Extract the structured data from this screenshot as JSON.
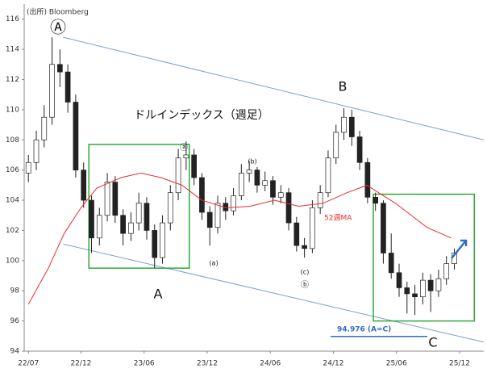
{
  "chart_data": {
    "type": "candlestick",
    "title": "ドルインデックス（週足）",
    "source": "(出所) Bloomberg",
    "xlim": [
      -0.4,
      43.3
    ],
    "xticks": [
      {
        "value": 0,
        "label": "22/07"
      },
      {
        "value": 5,
        "label": "22/12"
      },
      {
        "value": 11,
        "label": "23/06"
      },
      {
        "value": 17,
        "label": "23/12"
      },
      {
        "value": 23,
        "label": "24/06"
      },
      {
        "value": 29,
        "label": "24/12"
      },
      {
        "value": 35,
        "label": "25/06"
      },
      {
        "value": 41,
        "label": "25/12"
      }
    ],
    "ylim": [
      94,
      117
    ],
    "yticks": [
      94,
      96,
      98,
      100,
      102,
      104,
      106,
      108,
      110,
      112,
      114,
      116
    ],
    "up_color": "#ffffff",
    "down_color": "#222222",
    "x": [
      0,
      0.75,
      1.5,
      2.25,
      3,
      3.75,
      4.5,
      5.25,
      6,
      6.75,
      7.5,
      8.25,
      9,
      9.75,
      10.5,
      11.25,
      12,
      12.75,
      13.5,
      14.25,
      15,
      15.75,
      16.5,
      17.25,
      18,
      18.75,
      19.5,
      20.25,
      21,
      21.75,
      22.5,
      23.25,
      24,
      24.75,
      25.5,
      26.25,
      27,
      27.75,
      28.5,
      29.25,
      30,
      30.75,
      31.5,
      32.25,
      33,
      33.75,
      34.5,
      35.25,
      36,
      36.75,
      37.5,
      38.25,
      39,
      39.75,
      40.5
    ],
    "open": [
      105.8,
      106.5,
      108,
      109.5,
      113,
      112.5,
      110.5,
      106,
      104,
      101.5,
      103,
      105.2,
      103,
      101.8,
      102.5,
      103.8,
      102,
      100.2,
      102.5,
      104.5,
      106.8,
      107,
      105.5,
      103.2,
      102.2,
      103.8,
      103.3,
      104.3,
      105.8,
      106,
      105,
      105.3,
      104.2,
      104.5,
      102.5,
      101,
      100.8,
      103.5,
      104.5,
      106.8,
      108.5,
      109.5,
      108.2,
      106.5,
      104.2,
      103.8,
      100.5,
      99.2,
      98.2,
      97.8,
      97.6,
      98.7,
      98,
      98.8,
      99.8
    ],
    "high": [
      107,
      108.6,
      110.3,
      114.8,
      114,
      113,
      111,
      106.5,
      104.3,
      103.5,
      105.8,
      105.6,
      103.4,
      103.2,
      104.5,
      104.2,
      102.4,
      103,
      105,
      107.4,
      107.9,
      107.4,
      105.8,
      103.6,
      104.3,
      104.2,
      104.8,
      106.4,
      106.6,
      106.2,
      105.9,
      105.6,
      105,
      104.8,
      102.9,
      101.5,
      104,
      105,
      107.3,
      109,
      110.1,
      110,
      108.6,
      106.8,
      104.5,
      104,
      101.8,
      99.8,
      98.6,
      98.4,
      99.2,
      99.1,
      99.4,
      100.3,
      100.8
    ],
    "low": [
      105.2,
      106,
      107.5,
      109,
      111.5,
      109.8,
      105.5,
      103.5,
      100.5,
      101,
      102.6,
      102.5,
      101,
      101.3,
      102,
      101.4,
      99.5,
      99.8,
      102,
      104,
      106,
      105,
      102.7,
      101,
      101.8,
      102.7,
      103,
      104,
      105.2,
      104.5,
      104.6,
      103.7,
      103.8,
      102,
      100.6,
      100.2,
      100.5,
      103.1,
      104.2,
      106.4,
      108,
      107.6,
      106,
      103.8,
      103.3,
      99.8,
      98.8,
      97.6,
      96.5,
      96.4,
      97.1,
      96.6,
      97.6,
      98.4,
      99.4
    ],
    "close": [
      106.5,
      108,
      109.5,
      113,
      112.5,
      110.5,
      106,
      104,
      101.5,
      103,
      105.2,
      103,
      101.8,
      102.5,
      103.8,
      102,
      100.2,
      102.5,
      104.5,
      106.8,
      107,
      105.5,
      103.2,
      102.2,
      103.8,
      103.3,
      104.3,
      105.8,
      106,
      105,
      105.3,
      104.2,
      104.5,
      102.5,
      101,
      100.8,
      103.5,
      104.5,
      106.8,
      108.5,
      109.5,
      108.2,
      106.5,
      104.2,
      103.8,
      100.5,
      99.2,
      98.2,
      97.8,
      97.6,
      98.7,
      98,
      98.8,
      99.8,
      100.5
    ],
    "ma": {
      "name": "52週MA",
      "color": "#e8302a",
      "x": [
        0,
        1.9,
        3.4,
        5,
        6.5,
        8.8,
        10.7,
        12.6,
        14.6,
        16.5,
        18.8,
        21.1,
        23.4,
        25.7,
        28,
        30.3,
        32.2,
        33.3,
        34.9,
        36.4,
        37.9,
        40.2
      ],
      "values": [
        97.1,
        99.5,
        101.8,
        103.5,
        104.8,
        105.5,
        105.8,
        105.5,
        105,
        104,
        103.5,
        103.6,
        104,
        103.6,
        103.8,
        104.5,
        105,
        104.5,
        103.8,
        103,
        102.2,
        101.5
      ]
    },
    "trendlines": [
      {
        "color": "#7a9fd6",
        "x": [
          3.3,
          43.3
        ],
        "values": [
          114.8,
          108
        ]
      },
      {
        "color": "#7a9fd6",
        "x": [
          3.3,
          43.3
        ],
        "values": [
          101.1,
          94.6
        ]
      }
    ],
    "boxes": [
      {
        "color": "#2eaa3a",
        "x": [
          5.75,
          15.3
        ],
        "values": [
          107.7,
          99.5
        ]
      },
      {
        "color": "#2eaa3a",
        "x": [
          32.8,
          42.4
        ],
        "values": [
          104.4,
          96
        ]
      }
    ],
    "target": {
      "value": 94.976,
      "label": "94.976 (A=C)",
      "color": "#2e6fbf"
    },
    "annotations": [
      "Ⓐ",
      "A",
      "B",
      "C",
      "(a)",
      "(b)",
      "(c)",
      "ⓑ",
      "ⓐ"
    ]
  }
}
